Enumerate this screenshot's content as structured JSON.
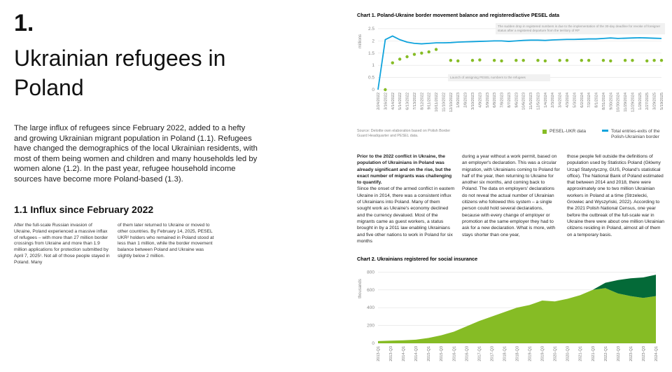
{
  "header": {
    "number": "1.",
    "title": "Ukrainian refugees in Poland"
  },
  "intro": "The large influx of refugees since February 2022, added to a hefty and growing Ukrainian migrant population in Poland (1.1). Refugees have changed the demographics of the local Ukrainian residents, with most of them being women and children and many households led by women alone (1.2). In the past year, refugee household income sources have become more Poland-based (1.3).",
  "section": {
    "heading": "1.1 Influx since February 2022",
    "columns": [
      "After the full-scale Russian invasion of Ukraine, Poland experienced a massive inflax of refugees – with more than 27 million border crossings from Ukraine and more than 1.9 million applications for protection submitted by April 7, 2025¹. Not all of those people stayed in Poland. Many",
      "of them later returned to Ukraine or moved to other countries. By February 14, 2025, PESEL UKR² holders who remained in Poland stood at less than 1 million, while the border movement balance between Poland and Ukraine was slightly below 2 million."
    ]
  },
  "body": {
    "lead": "Prior to the 2022 conflict in Ukraine, the population of Ukrainians in Poland was already significant and on the rise, but the exact number of migrants was challenging to quantify.",
    "columns": [
      "Since the onset of the armed conflict in eastern Ukraine in 2014, there was a consistent influx of Ukrainians into Poland. Many of them sought work as Ukraine's economy declined and the currency devalued. Most of the migrants came as guest workers, a status brought in by a 2011 law enabling Ukrainians and five other nations to work in Poland for six months",
      "during a year without a work permit, based on an employer's declaration. This was a circular migration, with Ukrainians coming to Poland for half of the year, then returning to Ukraine for another six months, and coming back to Poland. The data on employers' declarations do not reveal the actual number of Ukrainian citizens who followed this system – a single person could hold several declarations, because with every change of employer or promotion at the same employer they had to ask for a new declaration. What is more, with stays shorter than one year,",
      "those people fell outside the definitions of population used by Statistics Poland (Główny Urząd Statystyczny, GUS, Poland's statistical office). The National Bank of Poland estimated that between 2014 and 2018, there were approximately one to two million Ukrainian workers in Poland at a time (Strzelecki, Growiec and Wyszyński, 2022). According to the 2021 Polish National Census, one year before the outbreak of the full-scale war in Ukraine there were about one million Ukrainian citizens residing in Poland, almost all of them on a temporary basis."
    ]
  },
  "chart_data": [
    {
      "type": "line",
      "title": "Chart 1. Poland-Ukraine border movement balance and registered/active PESEL data",
      "y_label": "millions",
      "categories": [
        "2/24/2022",
        "3/16/2022",
        "4/14/2022",
        "5/14/2022",
        "6/13/2022",
        "7/13/2022",
        "8/12/2022",
        "9/11/2022",
        "10/11/2022",
        "11/10/2022",
        "12/10/2022",
        "1/9/2023",
        "2/8/2023",
        "3/10/2023",
        "4/9/2023",
        "5/9/2023",
        "6/8/2023",
        "7/8/2023",
        "8/7/2023",
        "9/6/2023",
        "10/6/2023",
        "11/5/2023",
        "12/5/2023",
        "1/4/2024",
        "2/3/2024",
        "3/4/2024",
        "4/3/2024",
        "5/3/2024",
        "6/2/2024",
        "7/2/2024",
        "8/1/2024",
        "8/31/2024",
        "9/30/2024",
        "10/30/2024",
        "11/29/2024",
        "12/29/2024",
        "1/28/2025",
        "2/27/2025",
        "3/29/2025",
        "5/19/2025"
      ],
      "series": [
        {
          "name": "PESEL-UKR data",
          "type": "scatter",
          "color": "#86bc25",
          "values": [
            null,
            0,
            1.1,
            1.25,
            1.35,
            1.45,
            1.5,
            1.55,
            1.65,
            null,
            1.2,
            1.18,
            null,
            1.2,
            1.22,
            null,
            1.2,
            1.18,
            null,
            1.2,
            1.2,
            null,
            1.2,
            1.18,
            null,
            1.2,
            1.2,
            null,
            1.2,
            1.2,
            null,
            1.2,
            1.18,
            null,
            1.2,
            1.2,
            null,
            1.18,
            1.2,
            1.2
          ]
        },
        {
          "name": "Total entries-exits of the Polish-Ukrainian border",
          "type": "line",
          "color": "#0fa3dc",
          "values": [
            0,
            2.05,
            2.2,
            2.05,
            1.95,
            1.9,
            1.88,
            1.9,
            1.92,
            1.92,
            1.93,
            1.95,
            1.96,
            1.97,
            1.98,
            1.99,
            2.0,
            2.0,
            1.98,
            2.0,
            2.02,
            2.03,
            2.03,
            2.02,
            2.04,
            2.05,
            2.06,
            2.06,
            2.07,
            2.08,
            2.08,
            2.1,
            2.12,
            2.1,
            2.11,
            2.12,
            2.13,
            2.12,
            2.11,
            2.1
          ]
        }
      ],
      "ylim": [
        0,
        2.7
      ],
      "yticks": [
        0,
        0.5,
        1,
        1.5,
        2,
        2.5
      ],
      "grid": true,
      "annotations": [
        "The sudden drop in registered numbers is due to the implementation of the 30-day deadline for revoke of foreigner status after a registered departure from the territory of RP",
        "Launch of assigning PESEL numbers to the refugees"
      ],
      "source": "Source: Deloitte own elaboration based on Polish Border Guard Headquarter and PESEL data."
    },
    {
      "type": "area",
      "title": "Chart 2. Ukrainians registered for social insurance",
      "y_label": "thousands",
      "categories": [
        "2013-Q1",
        "2013-Q3",
        "2014-Q1",
        "2014-Q3",
        "2015-Q1",
        "2015-Q3",
        "2016-Q1",
        "2016-Q3",
        "2017-Q1",
        "2017-Q3",
        "2018-Q1",
        "2018-Q3",
        "2019-Q1",
        "2019-Q3",
        "2020-Q1",
        "2020-Q3",
        "2021-Q1",
        "2021-Q3",
        "2022-Q1",
        "2022-Q3",
        "2023-Q1",
        "2023-Q3",
        "2024-Q1"
      ],
      "series": [
        {
          "color": "#86bc25",
          "values": [
            25,
            30,
            33,
            40,
            60,
            90,
            130,
            190,
            250,
            300,
            350,
            400,
            430,
            480,
            470,
            500,
            540,
            600,
            620,
            560,
            530,
            510,
            530
          ]
        },
        {
          "color": "#046a38",
          "values": [
            null,
            null,
            null,
            null,
            null,
            null,
            null,
            null,
            null,
            null,
            null,
            null,
            null,
            null,
            null,
            null,
            null,
            0,
            60,
            150,
            200,
            230,
            240
          ]
        }
      ],
      "stacked": true,
      "ylim": [
        0,
        850
      ],
      "yticks": [
        0,
        200,
        400,
        600,
        800
      ],
      "grid": true
    }
  ]
}
